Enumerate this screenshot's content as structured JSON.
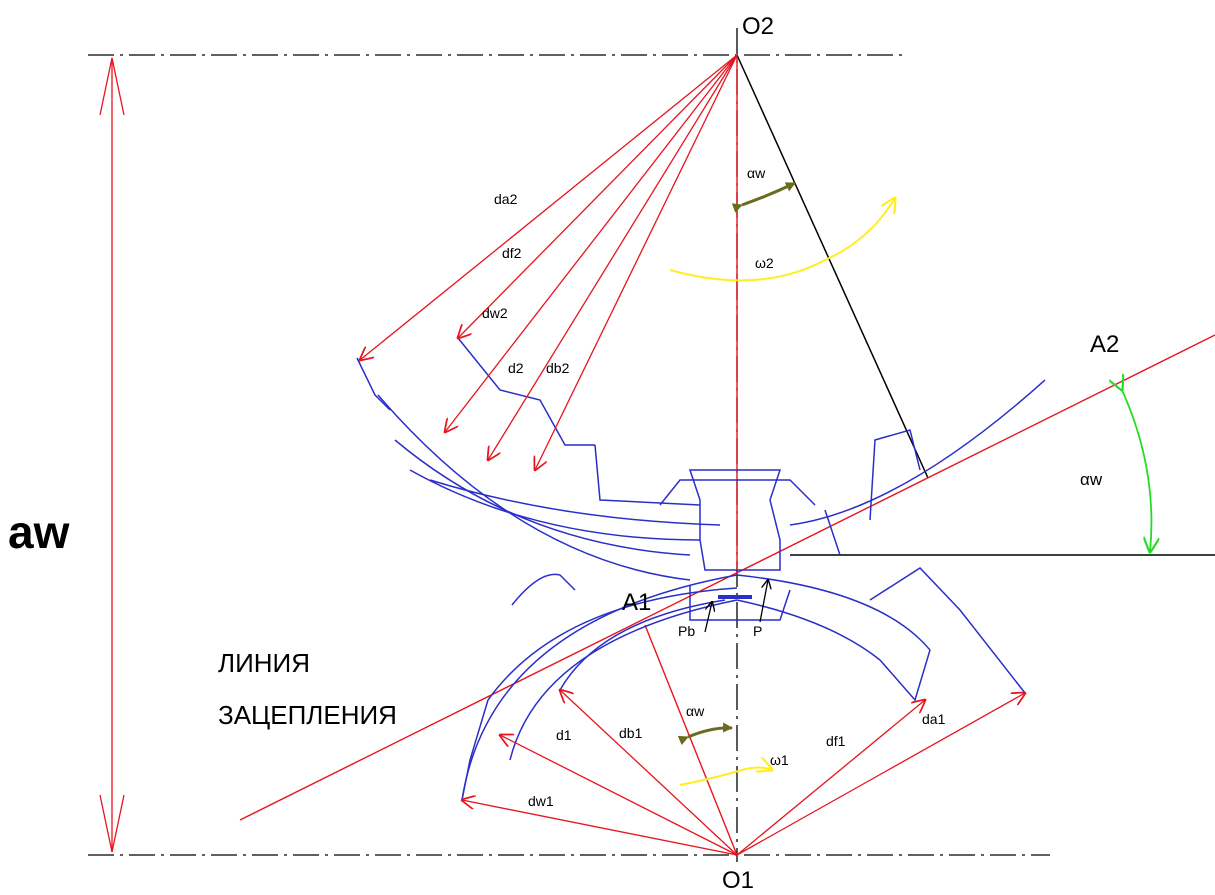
{
  "colors": {
    "axis": "#000000",
    "dimension": "#e8141e",
    "gear_profile": "#2a2fc8",
    "rotation_arrow": "#ffee22",
    "angle_arrow": "#22dd22",
    "small_angle_arrow": "#6b6b1e"
  },
  "labels": {
    "o2": "O2",
    "o1": "O1",
    "aw": "aw",
    "a2": "A2",
    "a1": "A1",
    "alpha_w_right": "αw",
    "alpha_w_top": "αw",
    "alpha_w_bottom": "αw",
    "omega2": "ω2",
    "omega1": "ω1",
    "da2": "da2",
    "df2": "df2",
    "dw2": "dw2",
    "d2": "d2",
    "db2": "db2",
    "d1": "d1",
    "db1": "db1",
    "df1": "df1",
    "da1": "da1",
    "dw1": "dw1",
    "pb": "Pb",
    "p": "P",
    "line_of_action_1": "ЛИНИЯ",
    "line_of_action_2": "ЗАЦЕПЛЕНИЯ"
  }
}
